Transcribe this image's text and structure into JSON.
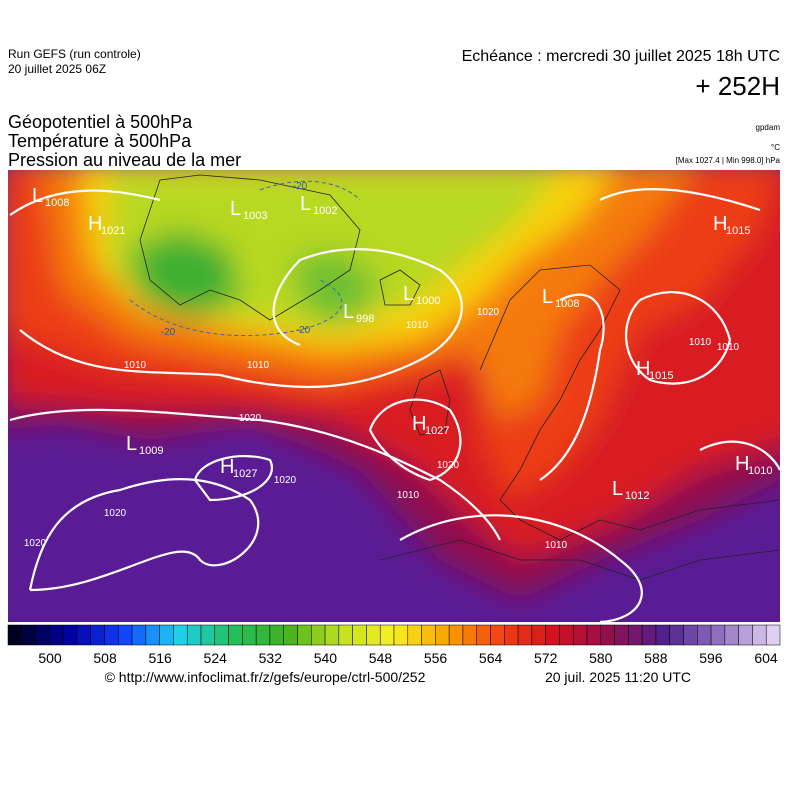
{
  "header": {
    "run": "Run GEFS (run controle)",
    "run_date": "20 juillet 2025 06Z",
    "valid": "Echéance : mercredi 30 juillet 2025 18h UTC",
    "lead": "+ 252H",
    "titles": [
      "Géopotentiel à 500hPa",
      "Température à 500hPa",
      "Pression au niveau de la mer"
    ],
    "units": [
      "gpdam",
      "°C",
      "[Max 1027.4 | Min 998.0] hPa"
    ]
  },
  "pressure_centers": [
    {
      "kind": "L",
      "value": 1008
    },
    {
      "kind": "H",
      "value": 1021
    },
    {
      "kind": "L",
      "value": 1003
    },
    {
      "kind": "L",
      "value": 1002
    },
    {
      "kind": "L",
      "value": 1000
    },
    {
      "kind": "L",
      "value": 998
    },
    {
      "kind": "L",
      "value": 1008
    },
    {
      "kind": "H",
      "value": 1015
    },
    {
      "kind": "H",
      "value": 1015
    },
    {
      "kind": "H",
      "value": 1027
    },
    {
      "kind": "L",
      "value": 1009
    },
    {
      "kind": "H",
      "value": 1027
    },
    {
      "kind": "H",
      "value": 1010
    },
    {
      "kind": "L",
      "value": 1012
    }
  ],
  "isobar_labels": [
    1010,
    1010,
    1010,
    1010,
    1010,
    1010,
    1010,
    1020,
    1020,
    1020,
    1020,
    1020,
    1020
  ],
  "isotherm_labels": [
    -20,
    -20,
    -20
  ],
  "colorbar": {
    "ticks": [
      500,
      508,
      516,
      524,
      532,
      540,
      548,
      556,
      564,
      572,
      580,
      588,
      596,
      604
    ],
    "stops": [
      "#000020",
      "#0000a0",
      "#1040ff",
      "#20d0f0",
      "#20c060",
      "#40b020",
      "#c0e020",
      "#f8f020",
      "#f8a000",
      "#f04010",
      "#d01020",
      "#901050",
      "#502090",
      "#9070c0",
      "#e0d0f0"
    ]
  },
  "footer": {
    "source": "© http://www.infoclimat.fr/z/gefs/europe/ctrl-500/252",
    "generated": "20 juil. 2025 11:20 UTC"
  }
}
